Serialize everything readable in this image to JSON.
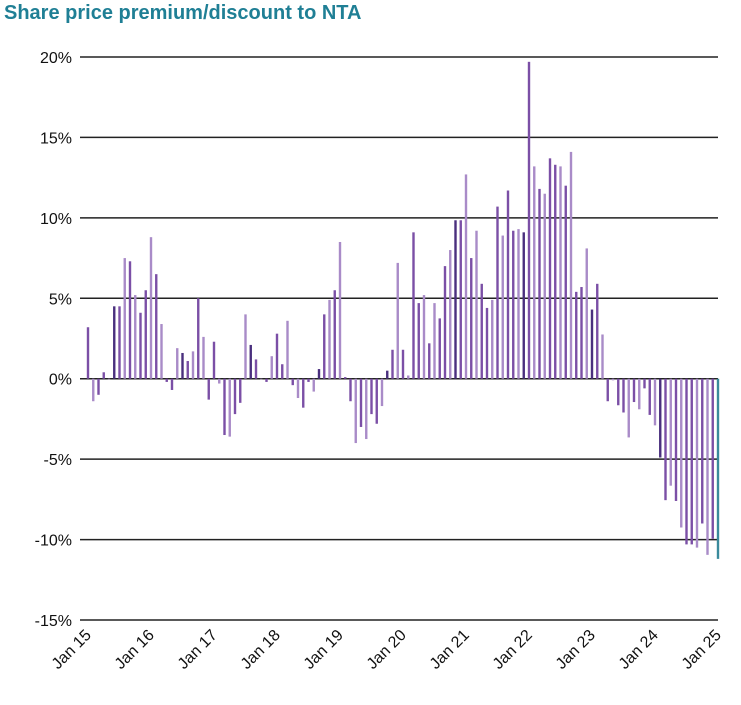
{
  "chart_data": {
    "type": "bar",
    "title": "Share price premium/discount to NTA",
    "xlabel": "",
    "ylabel": "",
    "ylim": [
      -15,
      20
    ],
    "yticks": [
      20,
      15,
      10,
      5,
      0,
      -5,
      -10,
      -15
    ],
    "ytick_labels": [
      "20%",
      "15%",
      "10%",
      "5%",
      "0%",
      "-5%",
      "-10%",
      "-15%"
    ],
    "xtick_labels": [
      "Jan 15",
      "Jan 16",
      "Jan 17",
      "Jan 18",
      "Jan 19",
      "Jan 20",
      "Jan 21",
      "Jan 22",
      "Jan 23",
      "Jan 24",
      "Jan 25"
    ],
    "x_start": "Jan 15",
    "x_frequency": "monthly",
    "grid": "horizontal",
    "colors": {
      "title": "#1f7f95",
      "bar_palette": [
        "#7b4fa6",
        "#a98bc8",
        "#4a2f7e"
      ],
      "latest_bar": "#3a8a9c",
      "grid": "#222222"
    },
    "values": [
      3.2,
      -1.4,
      -1.0,
      0.4,
      0,
      4.5,
      4.5,
      7.5,
      7.3,
      5.2,
      4.1,
      5.5,
      8.8,
      6.5,
      3.4,
      -0.2,
      -0.7,
      1.9,
      1.6,
      1.1,
      1.7,
      5.0,
      2.6,
      -1.3,
      2.3,
      -0.3,
      -3.5,
      -3.6,
      -2.2,
      -1.5,
      4.0,
      2.1,
      1.2,
      0,
      -0.2,
      1.4,
      2.8,
      0.9,
      3.6,
      -0.4,
      -1.2,
      -1.8,
      -0.2,
      -0.8,
      0.6,
      4.0,
      4.9,
      5.5,
      8.5,
      0.1,
      -1.4,
      -4.0,
      -3.0,
      -3.75,
      -2.2,
      -2.8,
      -1.7,
      0.5,
      1.8,
      7.2,
      1.8,
      0.2,
      9.1,
      4.7,
      5.2,
      2.2,
      4.7,
      3.75,
      7.0,
      8.0,
      9.85,
      9.85,
      12.7,
      7.5,
      9.2,
      5.9,
      4.4,
      4.9,
      10.7,
      8.9,
      11.7,
      9.2,
      9.3,
      9.1,
      19.7,
      13.2,
      11.8,
      11.5,
      13.7,
      13.3,
      13.2,
      12.0,
      14.1,
      5.4,
      5.7,
      8.1,
      4.3,
      5.9,
      2.75,
      -1.4,
      -0.1,
      -1.65,
      -2.1,
      -3.65,
      -1.45,
      -1.9,
      -0.6,
      -2.25,
      -2.9,
      -4.9,
      -7.55,
      -6.65,
      -7.6,
      -9.25,
      -10.3,
      -10.3,
      -10.5,
      -9.0,
      -10.95,
      -9.95,
      -11.2
    ]
  }
}
